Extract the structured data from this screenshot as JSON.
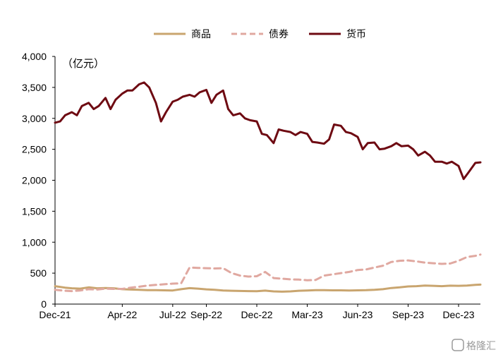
{
  "chart_data": {
    "type": "line",
    "unit_label": "（亿元）",
    "ylim": [
      0,
      4000
    ],
    "y_ticks": [
      "0",
      "500",
      "1,000",
      "1,500",
      "2,000",
      "2,500",
      "3,000",
      "3,500",
      "4,000"
    ],
    "x_ticks": [
      "Dec-21",
      "Apr-22",
      "Jul-22",
      "Sep-22",
      "Dec-22",
      "Mar-23",
      "Jun-23",
      "Sep-23",
      "Dec-23"
    ],
    "x_tick_months": [
      0,
      4,
      7,
      9,
      12,
      15,
      18,
      21,
      24
    ],
    "x_range_months": [
      0,
      25.3
    ],
    "legend_position": "top-center",
    "grid": false,
    "series": [
      {
        "name": "商品",
        "color": "#c9a56f",
        "style": "solid",
        "months": [
          0,
          0.6,
          1.0,
          1.5,
          2.0,
          2.5,
          3.0,
          3.5,
          4.0,
          4.5,
          5.0,
          5.5,
          6.0,
          6.5,
          7.0,
          7.5,
          8.0,
          8.5,
          9.0,
          9.5,
          10.0,
          10.5,
          11.0,
          11.5,
          12.0,
          12.5,
          13.0,
          13.5,
          14.0,
          14.5,
          15.0,
          15.5,
          16.0,
          16.5,
          17.0,
          17.5,
          18.0,
          18.5,
          19.0,
          19.5,
          20.0,
          20.5,
          21.0,
          21.5,
          22.0,
          22.5,
          23.0,
          23.5,
          24.0,
          24.5,
          25.0,
          25.3
        ],
        "values": [
          290,
          265,
          255,
          250,
          270,
          255,
          260,
          255,
          240,
          235,
          230,
          225,
          225,
          222,
          220,
          240,
          258,
          250,
          238,
          230,
          220,
          215,
          212,
          210,
          208,
          218,
          205,
          200,
          205,
          215,
          220,
          225,
          225,
          222,
          222,
          220,
          222,
          225,
          230,
          240,
          260,
          270,
          285,
          290,
          300,
          295,
          290,
          298,
          295,
          300,
          310,
          315
        ]
      },
      {
        "name": "债券",
        "color": "#e0a8a0",
        "style": "dashed",
        "months": [
          0,
          0.6,
          1.0,
          1.5,
          2.0,
          2.5,
          3.0,
          3.5,
          4.0,
          4.5,
          5.0,
          5.5,
          6.0,
          6.5,
          7.0,
          7.5,
          8.0,
          8.5,
          9.0,
          9.5,
          10.0,
          10.5,
          11.0,
          11.5,
          12.0,
          12.5,
          13.0,
          13.5,
          14.0,
          14.5,
          15.0,
          15.5,
          16.0,
          16.5,
          17.0,
          17.5,
          18.0,
          18.5,
          19.0,
          19.5,
          20.0,
          20.5,
          21.0,
          21.5,
          22.0,
          22.5,
          23.0,
          23.5,
          24.0,
          24.5,
          25.0,
          25.3
        ],
        "values": [
          230,
          215,
          210,
          220,
          240,
          235,
          250,
          245,
          245,
          265,
          280,
          300,
          310,
          320,
          330,
          335,
          590,
          585,
          580,
          575,
          580,
          500,
          460,
          445,
          450,
          520,
          420,
          410,
          400,
          395,
          385,
          390,
          460,
          480,
          500,
          520,
          550,
          560,
          590,
          620,
          680,
          700,
          705,
          690,
          670,
          660,
          650,
          655,
          700,
          760,
          780,
          800
        ]
      },
      {
        "name": "货币",
        "color": "#6e0a12",
        "style": "solid",
        "months": [
          0,
          0.3,
          0.6,
          1.0,
          1.3,
          1.6,
          2.0,
          2.3,
          2.6,
          3.0,
          3.3,
          3.6,
          4.0,
          4.3,
          4.6,
          5.0,
          5.3,
          5.6,
          6.0,
          6.3,
          6.6,
          7.0,
          7.3,
          7.6,
          8.0,
          8.3,
          8.6,
          9.0,
          9.3,
          9.6,
          10.0,
          10.3,
          10.6,
          11.0,
          11.3,
          11.6,
          12.0,
          12.3,
          12.6,
          13.0,
          13.3,
          13.6,
          14.0,
          14.3,
          14.6,
          15.0,
          15.3,
          15.6,
          16.0,
          16.3,
          16.6,
          17.0,
          17.3,
          17.6,
          18.0,
          18.3,
          18.6,
          19.0,
          19.3,
          19.6,
          20.0,
          20.3,
          20.6,
          21.0,
          21.3,
          21.6,
          22.0,
          22.3,
          22.6,
          23.0,
          23.3,
          23.6,
          24.0,
          24.3,
          24.6,
          25.0,
          25.3
        ],
        "values": [
          2930,
          2950,
          3050,
          3100,
          3050,
          3200,
          3250,
          3150,
          3200,
          3330,
          3150,
          3300,
          3400,
          3450,
          3450,
          3550,
          3580,
          3500,
          3250,
          2950,
          3100,
          3270,
          3300,
          3350,
          3380,
          3350,
          3420,
          3460,
          3250,
          3380,
          3450,
          3150,
          3050,
          3080,
          3000,
          2970,
          2950,
          2750,
          2730,
          2600,
          2820,
          2800,
          2780,
          2730,
          2780,
          2750,
          2620,
          2610,
          2590,
          2660,
          2900,
          2880,
          2780,
          2760,
          2700,
          2500,
          2600,
          2610,
          2500,
          2510,
          2550,
          2600,
          2550,
          2560,
          2500,
          2400,
          2460,
          2400,
          2300,
          2300,
          2270,
          2300,
          2230,
          2020,
          2130,
          2280,
          2290
        ]
      }
    ]
  },
  "watermark": "格隆汇"
}
